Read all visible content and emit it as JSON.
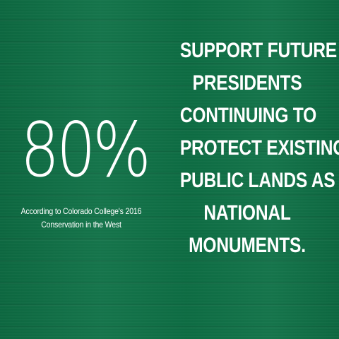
{
  "stat": {
    "value": "80%",
    "source_line_1": "According to Colorado College's 2016",
    "source_line_2": "Conservation in the West"
  },
  "headline": {
    "lines": [
      "SUPPORT FUTURE",
      "PRESIDENTS",
      "CONTINUING TO",
      "PROTECT EXISTING",
      "PUBLIC LANDS AS",
      "NATIONAL",
      "MONUMENTS."
    ]
  },
  "colors": {
    "background": "#0e7146",
    "text": "#ffffff"
  }
}
